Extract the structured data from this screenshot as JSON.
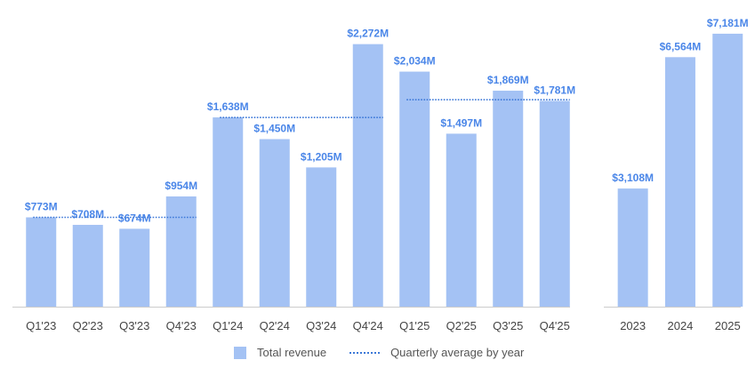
{
  "chart_data": [
    {
      "type": "bar",
      "categories": [
        "Q1'23",
        "Q2'23",
        "Q3'23",
        "Q4'23",
        "Q1'24",
        "Q2'24",
        "Q3'24",
        "Q4'24",
        "Q1'25",
        "Q2'25",
        "Q3'25",
        "Q4'25"
      ],
      "series": [
        {
          "name": "Total revenue",
          "values": [
            773,
            708,
            674,
            954,
            1638,
            1450,
            1205,
            2272,
            2034,
            1497,
            1869,
            1781
          ]
        }
      ],
      "data_labels": [
        "$773M",
        "$708M",
        "$674M",
        "$954M",
        "$1,638M",
        "$1,450M",
        "$1,205M",
        "$2,272M",
        "$2,034M",
        "$1,497M",
        "$1,869M",
        "$1,781M"
      ],
      "averages": [
        {
          "name": "Quarterly average by year",
          "year": "2023",
          "value": 777
        },
        {
          "name": "Quarterly average by year",
          "year": "2024",
          "value": 1641
        },
        {
          "name": "Quarterly average by year",
          "year": "2025",
          "value": 1795
        }
      ],
      "ylim": [
        0,
        2500
      ],
      "grid": false,
      "bar_color": "#a4c2f4",
      "label_color": "#4a86e8",
      "average_line_color": "#3c78d8"
    },
    {
      "type": "bar",
      "categories": [
        "2023",
        "2024",
        "2025"
      ],
      "series": [
        {
          "name": "Total revenue",
          "values": [
            3108,
            6564,
            7181
          ]
        }
      ],
      "data_labels": [
        "$3,108M",
        "$6,564M",
        "$7,181M"
      ],
      "ylim": [
        0,
        7600
      ],
      "grid": false,
      "bar_color": "#a4c2f4",
      "label_color": "#4a86e8"
    }
  ],
  "legend": {
    "items": [
      {
        "label": "Total revenue",
        "kind": "swatch"
      },
      {
        "label": "Quarterly average by year",
        "kind": "dotted-line"
      }
    ],
    "placement": "bottom"
  }
}
